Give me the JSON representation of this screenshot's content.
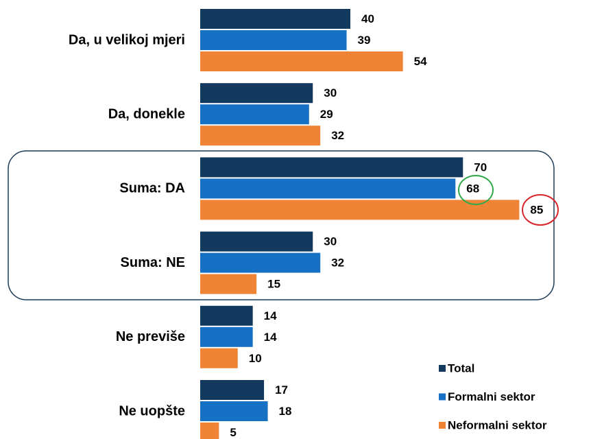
{
  "chart_data": {
    "type": "bar",
    "orientation": "horizontal",
    "categories": [
      "Da, u velikoj mjeri",
      "Da, donekle",
      "Suma: DA",
      "Suma: NE",
      "Ne previše",
      "Ne uopšte"
    ],
    "series": [
      {
        "name": "Total",
        "color": "#133a5e",
        "values": [
          40,
          30,
          70,
          30,
          14,
          17
        ]
      },
      {
        "name": "Formalni sektor",
        "color": "#1670c4",
        "values": [
          39,
          29,
          68,
          32,
          14,
          18
        ]
      },
      {
        "name": "Neformalni sektor",
        "color": "#ef8436",
        "values": [
          54,
          32,
          85,
          15,
          10,
          5
        ]
      }
    ],
    "legend": "bottom-right"
  }
}
